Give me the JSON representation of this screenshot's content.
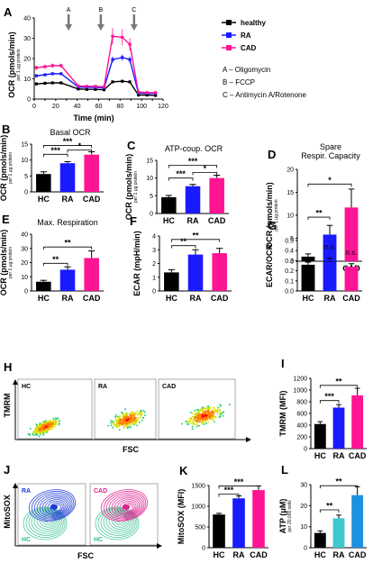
{
  "colors": {
    "healthy": "#000000",
    "ra": "#1a1aff",
    "cad": "#ff1493",
    "ra_contour": "#1f3bd6",
    "hc_contour": "#2fbf8a",
    "cad_contour": "#e0208f",
    "atp_ra": "#3ec8d0",
    "atp_cad": "#1e90e0"
  },
  "chart_data": [
    {
      "id": "A",
      "type": "line",
      "panel_label": "A",
      "xlabel": "Time (min)",
      "ylabel": "OCR (pmols/min)",
      "ylabel_sub": "per 1 μg protein",
      "xlim": [
        0,
        120
      ],
      "ylim": [
        0,
        40
      ],
      "xticks": [
        "0",
        "10",
        "20",
        "30",
        "40",
        "50",
        "60",
        "70",
        "80",
        "90",
        "100",
        "110",
        "120"
      ],
      "yticks": [
        "0",
        "10",
        "20",
        "30",
        "40"
      ],
      "x": [
        2,
        10,
        17,
        25,
        41,
        49,
        57,
        65,
        73,
        82,
        89,
        97,
        105,
        113
      ],
      "series": [
        {
          "name": "healthy",
          "key": "healthy",
          "values": [
            7.5,
            7.8,
            8.0,
            8.0,
            5.0,
            4.8,
            4.8,
            4.6,
            8.5,
            8.8,
            8.5,
            2.0,
            2.0,
            1.8
          ],
          "errors": [
            0.5,
            0.5,
            0.5,
            0.5,
            0.4,
            0.4,
            0.4,
            0.4,
            0.6,
            0.6,
            0.6,
            0.3,
            0.3,
            0.3
          ]
        },
        {
          "name": "RA",
          "key": "ra",
          "values": [
            11.5,
            12.0,
            12.5,
            12.5,
            6.0,
            5.8,
            5.8,
            5.5,
            19.5,
            20.5,
            19.5,
            3.0,
            2.8,
            2.8
          ],
          "errors": [
            0.7,
            0.7,
            0.7,
            0.7,
            0.5,
            0.5,
            0.5,
            0.5,
            1.5,
            1.5,
            1.5,
            0.4,
            0.4,
            0.4
          ]
        },
        {
          "name": "CAD",
          "key": "cad",
          "values": [
            15.5,
            16.0,
            16.5,
            16.5,
            6.5,
            6.3,
            6.3,
            6.0,
            31.0,
            30.5,
            27.0,
            3.5,
            3.2,
            3.2
          ],
          "errors": [
            1.0,
            1.0,
            1.0,
            1.0,
            0.6,
            0.6,
            0.6,
            0.6,
            4.0,
            4.0,
            3.0,
            0.5,
            0.5,
            0.5
          ]
        }
      ],
      "injections": [
        {
          "label": "A",
          "x": 32
        },
        {
          "label": "B",
          "x": 62
        },
        {
          "label": "C",
          "x": 93
        }
      ],
      "legend": [
        "healthy",
        "RA",
        "CAD"
      ],
      "annotations": [
        "A – Oligomycin",
        "B – FCCP",
        "C – Antimycin A/Rotenone"
      ]
    },
    {
      "id": "B",
      "type": "bar",
      "panel_label": "B",
      "title": "Basal OCR",
      "ylabel": "OCR (pmols/min)",
      "ylabel_sub": "per 1 μg protein",
      "categories": [
        "HC",
        "RA",
        "CAD"
      ],
      "values": [
        5.6,
        9.0,
        11.7
      ],
      "errors": [
        0.7,
        0.5,
        0.9
      ],
      "ylim": [
        0,
        15
      ],
      "yticks": [
        "0",
        "5",
        "10",
        "15"
      ],
      "sig": [
        {
          "from": 0,
          "to": 1,
          "label": "***",
          "y": 11.8
        },
        {
          "from": 0,
          "to": 2,
          "label": "***",
          "y": 14.6
        },
        {
          "from": 1,
          "to": 2,
          "label": "*",
          "y": 13.2
        }
      ]
    },
    {
      "id": "C",
      "type": "bar",
      "panel_label": "C",
      "title": "ATP-coup. OCR",
      "ylabel": "OCR (pmols/min)",
      "ylabel_sub": "per 1 μg protein",
      "categories": [
        "HC",
        "RA",
        "CAD"
      ],
      "values": [
        4.6,
        7.7,
        10.0
      ],
      "errors": [
        0.5,
        0.5,
        0.8
      ],
      "ylim": [
        0,
        15
      ],
      "yticks": [
        "0",
        "5",
        "10",
        "15"
      ],
      "sig": [
        {
          "from": 0,
          "to": 1,
          "label": "***",
          "y": 10.0
        },
        {
          "from": 0,
          "to": 2,
          "label": "***",
          "y": 13.6
        },
        {
          "from": 1,
          "to": 2,
          "label": "*",
          "y": 11.6
        }
      ]
    },
    {
      "id": "D",
      "type": "bar",
      "panel_label": "D",
      "title": "Spare",
      "title2": "Respir. Capacity",
      "ylabel": "OCR (pmols/min)",
      "ylabel_sub": "per 1 μg protein",
      "categories": [
        "HC",
        "RA",
        "CAD"
      ],
      "values": [
        1.0,
        5.8,
        11.7
      ],
      "errors": [
        0.6,
        2.0,
        4.0
      ],
      "ylim": [
        0,
        20
      ],
      "yticks": [
        "0",
        "5",
        "10",
        "15",
        "20"
      ],
      "sig": [
        {
          "from": 0,
          "to": 1,
          "label": "**",
          "y": 9.6
        },
        {
          "from": 0,
          "to": 2,
          "label": "*",
          "y": 16.8
        }
      ]
    },
    {
      "id": "E",
      "type": "bar",
      "panel_label": "E",
      "title": "Max. Respiration",
      "ylabel": "OCR (pmols/min)",
      "ylabel_sub": "per 1 μg protein",
      "categories": [
        "HC",
        "RA",
        "CAD"
      ],
      "values": [
        6.5,
        15.0,
        23.2
      ],
      "errors": [
        1.0,
        2.0,
        5.0
      ],
      "ylim": [
        0,
        40
      ],
      "yticks": [
        "0",
        "10",
        "20",
        "30",
        "40"
      ],
      "sig": [
        {
          "from": 0,
          "to": 1,
          "label": "**",
          "y": 19.5
        },
        {
          "from": 0,
          "to": 2,
          "label": "**",
          "y": 31.0
        }
      ]
    },
    {
      "id": "F",
      "type": "bar",
      "panel_label": "F",
      "ylabel": "ECAR (mpH/min)",
      "ylabel_sub": "",
      "categories": [
        "HC",
        "RA",
        "CAD"
      ],
      "values": [
        1.35,
        2.65,
        2.75
      ],
      "errors": [
        0.2,
        0.35,
        0.35
      ],
      "ylim": [
        0,
        4
      ],
      "yticks": [
        "0",
        "1",
        "2",
        "3",
        "4"
      ],
      "sig": [
        {
          "from": 0,
          "to": 1,
          "label": "**",
          "y": 3.3
        },
        {
          "from": 0,
          "to": 2,
          "label": "**",
          "y": 3.75
        }
      ]
    },
    {
      "id": "G",
      "type": "bar",
      "panel_label": "G",
      "ylabel": "ECAR/OCR",
      "ylabel_sub": "",
      "categories": [
        "HC",
        "RA",
        "CAD"
      ],
      "values": [
        0.26,
        0.29,
        0.24
      ],
      "errors": [
        0.025,
        0.035,
        0.03
      ],
      "ylim": [
        0,
        0.5
      ],
      "yticks": [
        "0.0",
        "0.1",
        "0.2",
        "0.3",
        "0.4",
        "0.5"
      ],
      "ns": [
        {
          "cat": 1,
          "label": "n.s."
        },
        {
          "cat": 2,
          "label": "n.s."
        }
      ]
    },
    {
      "id": "I",
      "type": "bar",
      "panel_label": "I",
      "ylabel": "TMRM (MFI)",
      "ylabel_sub": "",
      "categories": [
        "HC",
        "RA",
        "CAD"
      ],
      "values": [
        420,
        700,
        910
      ],
      "errors": [
        40,
        50,
        120
      ],
      "ylim": [
        0,
        1200
      ],
      "yticks": [
        "0",
        "200",
        "400",
        "600",
        "800",
        "1000",
        "1200"
      ],
      "sig": [
        {
          "from": 0,
          "to": 1,
          "label": "***",
          "y": 820
        },
        {
          "from": 0,
          "to": 2,
          "label": "**",
          "y": 1080
        }
      ]
    },
    {
      "id": "K",
      "type": "bar",
      "panel_label": "K",
      "ylabel": "MitoSOX (MFI)",
      "ylabel_sub": "",
      "categories": [
        "HC",
        "RA",
        "CAD"
      ],
      "values": [
        800,
        1190,
        1390
      ],
      "errors": [
        30,
        60,
        100
      ],
      "ylim": [
        0,
        1500
      ],
      "yticks": [
        "0",
        "500",
        "1000",
        "1500"
      ],
      "sig": [
        {
          "from": 0,
          "to": 1,
          "label": "***",
          "y": 1290
        },
        {
          "from": 0,
          "to": 2,
          "label": "***",
          "y": 1490
        }
      ]
    },
    {
      "id": "L",
      "type": "bar",
      "panel_label": "L",
      "ylabel": "ATP (μM)",
      "ylabel_sub": "per 20,000 cells",
      "categories": [
        "HC",
        "RA",
        "CAD"
      ],
      "values": [
        7,
        14,
        25
      ],
      "errors": [
        1,
        1.5,
        4
      ],
      "ylim": [
        0,
        30
      ],
      "yticks": [
        "0",
        "10",
        "20",
        "30"
      ],
      "sig": [
        {
          "from": 0,
          "to": 1,
          "label": "**",
          "y": 18
        },
        {
          "from": 0,
          "to": 2,
          "label": "**",
          "y": 29.5
        }
      ]
    }
  ],
  "flow_H": {
    "panel_label": "H",
    "ylabel": "TMRM",
    "xlabel": "FSC",
    "plots": [
      "HC",
      "RA",
      "CAD"
    ]
  },
  "flow_J": {
    "panel_label": "J",
    "ylabel": "MitoSOX",
    "xlabel": "FSC",
    "plots": [
      {
        "group": "RA",
        "control": "HC"
      },
      {
        "group": "CAD",
        "control": "HC"
      }
    ]
  }
}
